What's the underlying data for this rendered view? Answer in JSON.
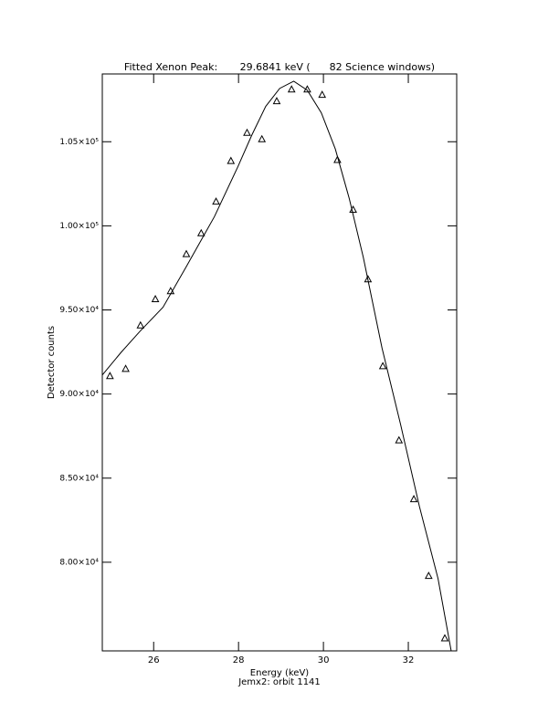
{
  "chart_data": {
    "type": "scatter",
    "title": "Fitted Xenon Peak:       29.6841 keV (      82 Science windows)",
    "x_label": "Energy (keV)",
    "subtitle": "Jemx2: orbit 1141",
    "y_label": "Detector counts",
    "xlim": [
      24.79,
      33.14
    ],
    "ylim": [
      74730,
      109030
    ],
    "xticks": [
      26,
      28,
      30,
      32
    ],
    "yticks": [
      {
        "value": 80000,
        "label": "8.00×10⁴"
      },
      {
        "value": 85000,
        "label": "8.50×10⁴"
      },
      {
        "value": 90000,
        "label": "9.00×10⁴"
      },
      {
        "value": 95000,
        "label": "9.50×10⁴"
      },
      {
        "value": 100000,
        "label": "1.00×10⁵"
      },
      {
        "value": 105000,
        "label": "1.05×10⁵"
      }
    ],
    "series": [
      {
        "style": "triangle",
        "color": "#000000",
        "x": [
          24.97,
          25.34,
          25.69,
          26.04,
          26.4,
          26.77,
          27.12,
          27.47,
          27.82,
          28.2,
          28.55,
          28.9,
          29.25,
          29.62,
          29.97,
          30.33,
          30.7,
          31.05,
          31.4,
          31.78,
          32.13,
          32.48,
          32.86
        ],
        "values": [
          91080,
          91510,
          94090,
          95650,
          96130,
          98330,
          99570,
          101450,
          103870,
          105540,
          105160,
          107420,
          108120,
          108120,
          107800,
          103930,
          100970,
          96830,
          91670,
          87260,
          83760,
          79200,
          75490
        ]
      },
      {
        "style": "line",
        "color": "#000000",
        "x": [
          24.79,
          25.23,
          25.67,
          26.22,
          26.77,
          27.43,
          27.98,
          28.31,
          28.64,
          28.97,
          29.3,
          29.62,
          29.95,
          30.28,
          30.61,
          30.94,
          31.38,
          31.82,
          32.26,
          32.7,
          33.01
        ],
        "values": [
          91130,
          92470,
          93710,
          95160,
          97580,
          100540,
          103490,
          105380,
          107100,
          108170,
          108600,
          108060,
          106720,
          104570,
          101610,
          98120,
          92740,
          88170,
          83330,
          79030,
          74730
        ]
      }
    ]
  }
}
